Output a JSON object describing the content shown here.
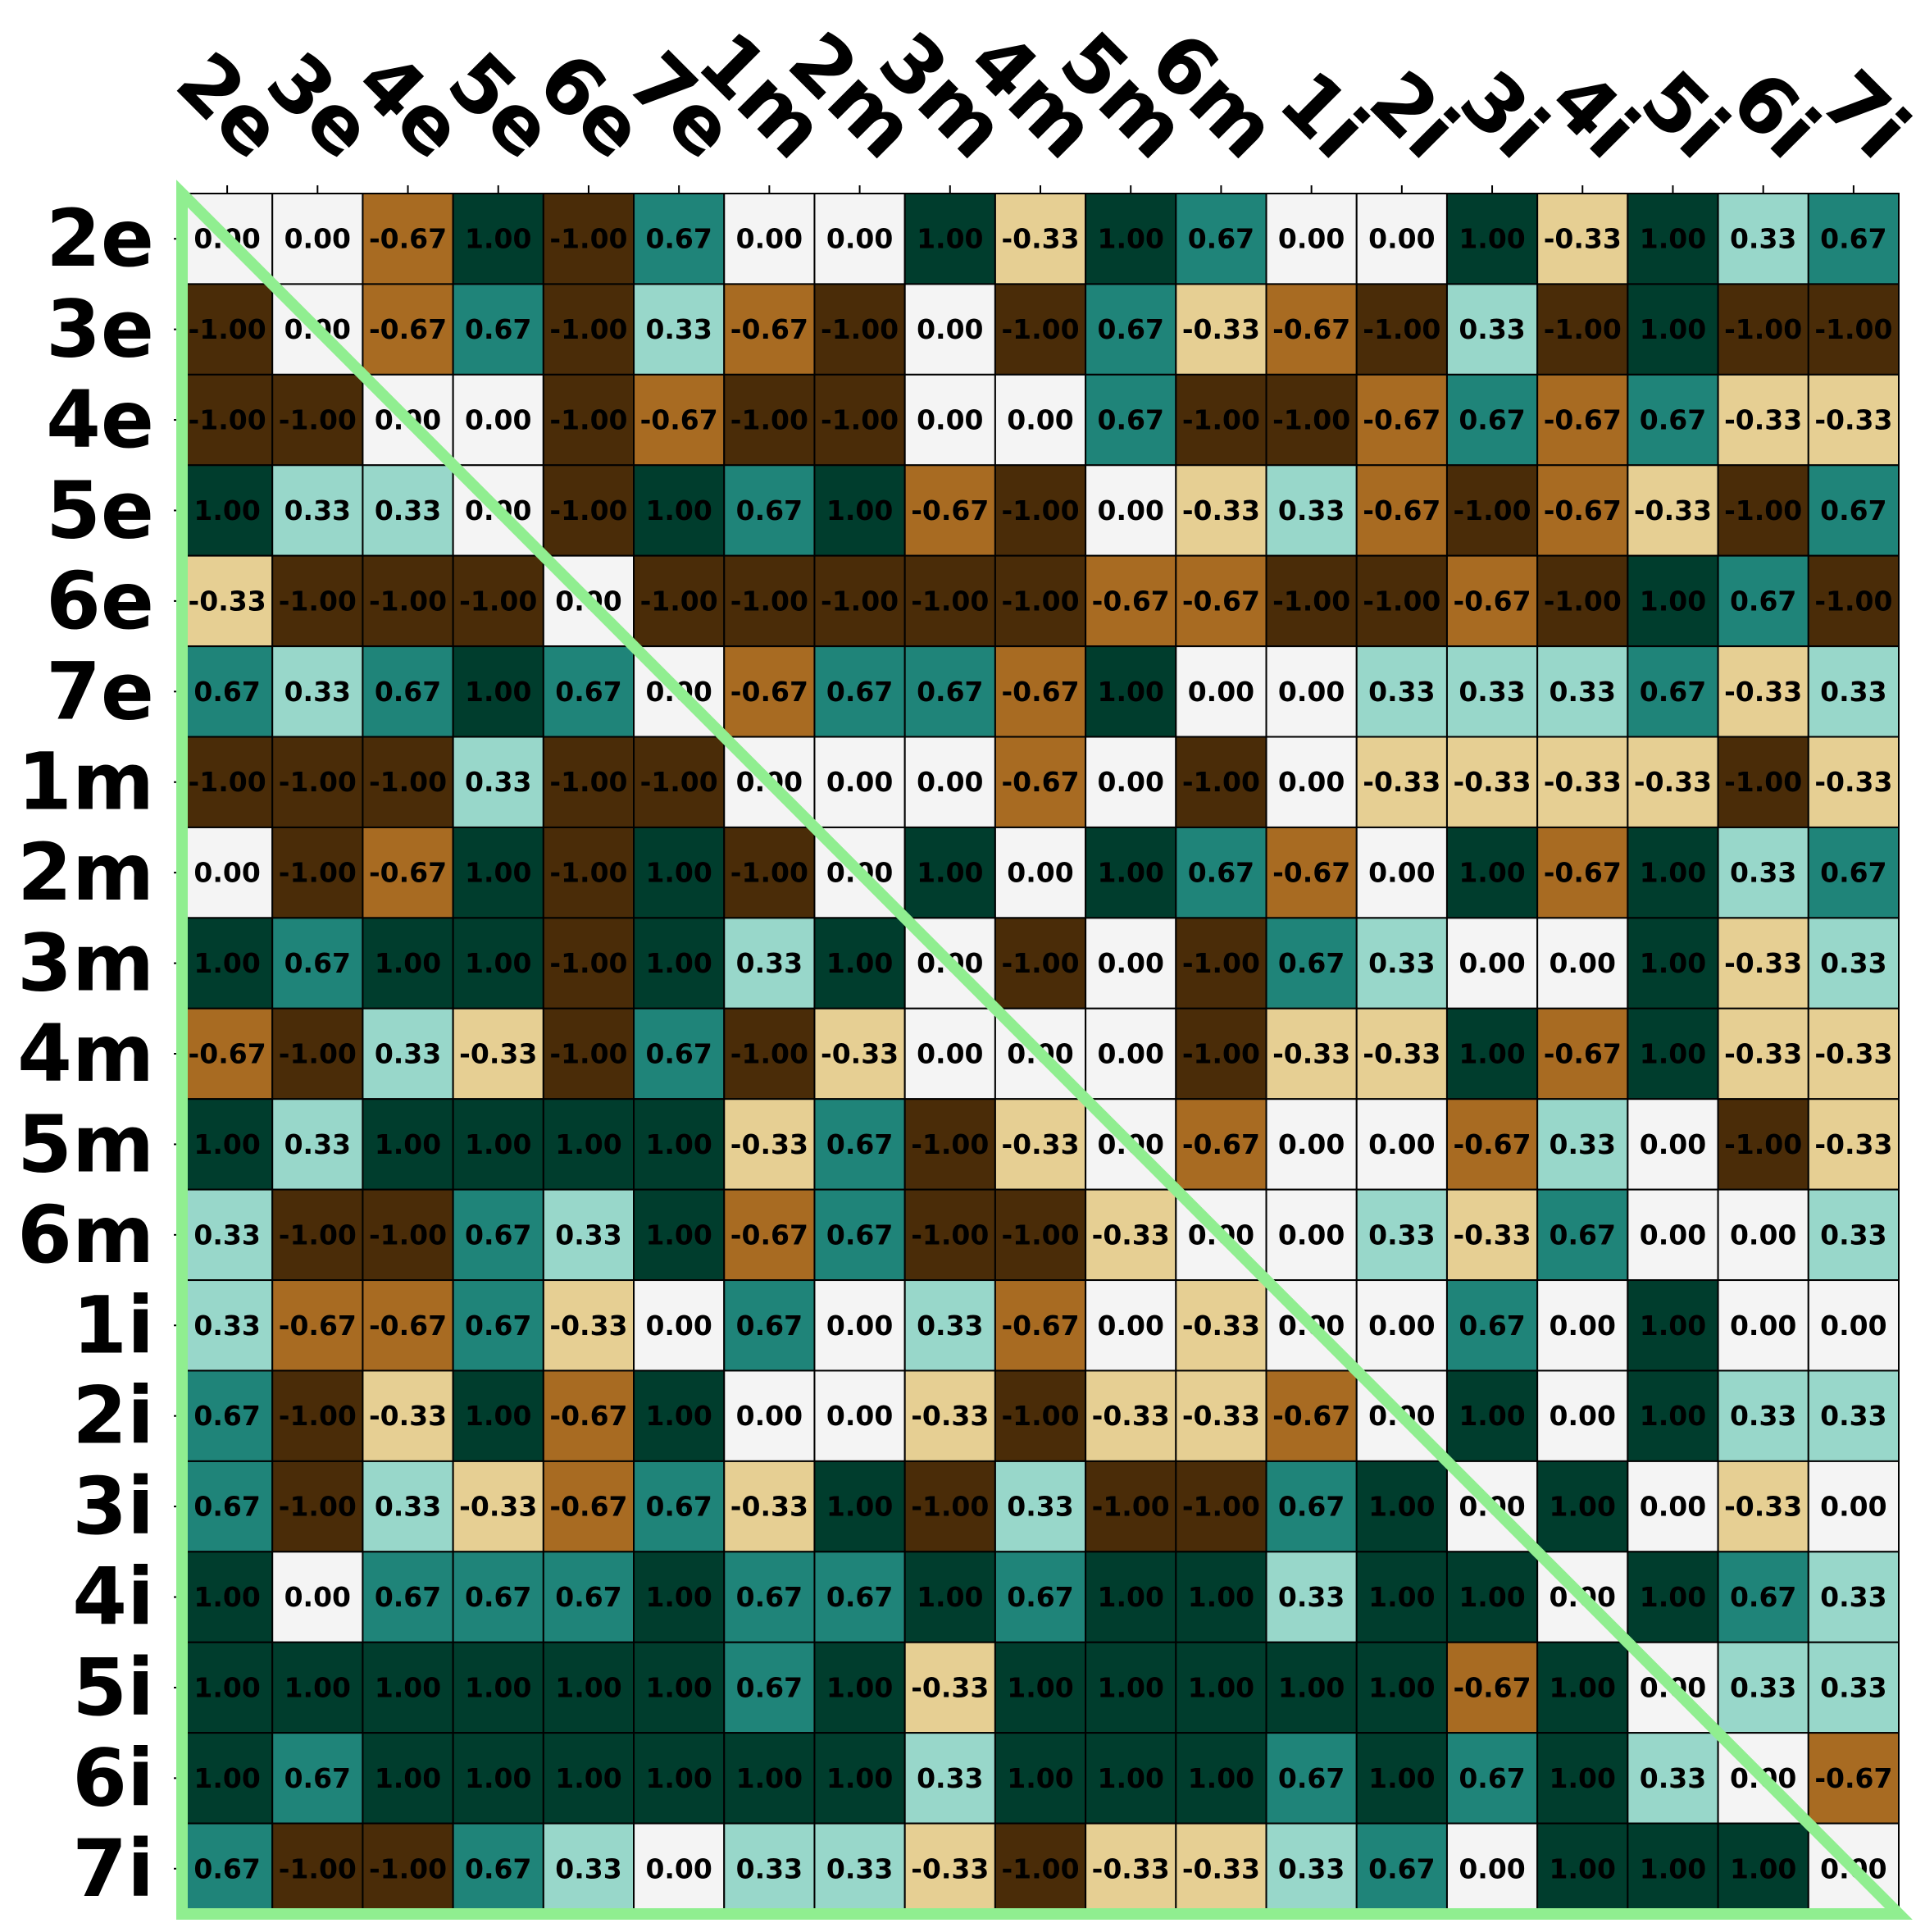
{
  "chart_data": {
    "type": "heatmap",
    "rows": [
      "2e",
      "3e",
      "4e",
      "5e",
      "6e",
      "7e",
      "1m",
      "2m",
      "3m",
      "4m",
      "5m",
      "6m",
      "1i",
      "2i",
      "3i",
      "4i",
      "5i",
      "6i",
      "7i"
    ],
    "columns": [
      "2e",
      "3e",
      "4e",
      "5e",
      "6e",
      "7e",
      "1m",
      "2m",
      "3m",
      "4m",
      "5m",
      "6m",
      "1i",
      "2i",
      "3i",
      "4i",
      "5i",
      "6i",
      "7i"
    ],
    "values": [
      [
        0.0,
        0.0,
        -0.67,
        1.0,
        -1.0,
        0.67,
        0.0,
        0.0,
        1.0,
        -0.33,
        1.0,
        0.67,
        0.0,
        0.0,
        1.0,
        -0.33,
        1.0,
        0.33,
        0.67
      ],
      [
        -1.0,
        0.0,
        -0.67,
        0.67,
        -1.0,
        0.33,
        -0.67,
        -1.0,
        0.0,
        -1.0,
        0.67,
        -0.33,
        -0.67,
        -1.0,
        0.33,
        -1.0,
        1.0,
        -1.0,
        -1.0
      ],
      [
        -1.0,
        -1.0,
        0.0,
        0.0,
        -1.0,
        -0.67,
        -1.0,
        -1.0,
        0.0,
        0.0,
        0.67,
        -1.0,
        -1.0,
        -0.67,
        0.67,
        -0.67,
        0.67,
        -0.33,
        -0.33
      ],
      [
        1.0,
        0.33,
        0.33,
        0.0,
        -1.0,
        1.0,
        0.67,
        1.0,
        -0.67,
        -1.0,
        0.0,
        -0.33,
        0.33,
        -0.67,
        -1.0,
        -0.67,
        -0.33,
        -1.0,
        0.67
      ],
      [
        -0.33,
        -1.0,
        -1.0,
        -1.0,
        0.0,
        -1.0,
        -1.0,
        -1.0,
        -1.0,
        -1.0,
        -0.67,
        -0.67,
        -1.0,
        -1.0,
        -0.67,
        -1.0,
        1.0,
        0.67,
        -1.0
      ],
      [
        0.67,
        0.33,
        0.67,
        1.0,
        0.67,
        0.0,
        -0.67,
        0.67,
        0.67,
        -0.67,
        1.0,
        0.0,
        0.0,
        0.33,
        0.33,
        0.33,
        0.67,
        -0.33,
        0.33
      ],
      [
        -1.0,
        -1.0,
        -1.0,
        0.33,
        -1.0,
        -1.0,
        0.0,
        0.0,
        0.0,
        -0.67,
        0.0,
        -1.0,
        0.0,
        -0.33,
        -0.33,
        -0.33,
        -0.33,
        -1.0,
        -0.33
      ],
      [
        0.0,
        -1.0,
        -0.67,
        1.0,
        -1.0,
        1.0,
        -1.0,
        0.0,
        1.0,
        0.0,
        1.0,
        0.67,
        -0.67,
        0.0,
        1.0,
        -0.67,
        1.0,
        0.33,
        0.67
      ],
      [
        1.0,
        0.67,
        1.0,
        1.0,
        -1.0,
        1.0,
        0.33,
        1.0,
        0.0,
        -1.0,
        0.0,
        -1.0,
        0.67,
        0.33,
        0.0,
        0.0,
        1.0,
        -0.33,
        0.33
      ],
      [
        -0.67,
        -1.0,
        0.33,
        -0.33,
        -1.0,
        0.67,
        -1.0,
        -0.33,
        0.0,
        0.0,
        0.0,
        -1.0,
        -0.33,
        -0.33,
        1.0,
        -0.67,
        1.0,
        -0.33,
        -0.33
      ],
      [
        1.0,
        0.33,
        1.0,
        1.0,
        1.0,
        1.0,
        -0.33,
        0.67,
        -1.0,
        -0.33,
        0.0,
        -0.67,
        0.0,
        0.0,
        -0.67,
        0.33,
        0.0,
        -1.0,
        -0.33
      ],
      [
        0.33,
        -1.0,
        -1.0,
        0.67,
        0.33,
        1.0,
        -0.67,
        0.67,
        -1.0,
        -1.0,
        -0.33,
        0.0,
        0.0,
        0.33,
        -0.33,
        0.67,
        0.0,
        0.0,
        0.33
      ],
      [
        0.33,
        -0.67,
        -0.67,
        0.67,
        -0.33,
        0.0,
        0.67,
        0.0,
        0.33,
        -0.67,
        0.0,
        -0.33,
        0.0,
        0.0,
        0.67,
        0.0,
        1.0,
        0.0,
        0.0
      ],
      [
        0.67,
        -1.0,
        -0.33,
        1.0,
        -0.67,
        1.0,
        0.0,
        0.0,
        -0.33,
        -1.0,
        -0.33,
        -0.33,
        -0.67,
        0.0,
        1.0,
        0.0,
        1.0,
        0.33,
        0.33
      ],
      [
        0.67,
        -1.0,
        0.33,
        -0.33,
        -0.67,
        0.67,
        -0.33,
        1.0,
        -1.0,
        0.33,
        -1.0,
        -1.0,
        0.67,
        1.0,
        0.0,
        1.0,
        0.0,
        -0.33,
        0.0
      ],
      [
        1.0,
        0.0,
        0.67,
        0.67,
        0.67,
        1.0,
        0.67,
        0.67,
        1.0,
        0.67,
        1.0,
        1.0,
        0.33,
        1.0,
        1.0,
        0.0,
        1.0,
        0.67,
        0.33
      ],
      [
        1.0,
        1.0,
        1.0,
        1.0,
        1.0,
        1.0,
        0.67,
        1.0,
        -0.33,
        1.0,
        1.0,
        1.0,
        1.0,
        1.0,
        -0.67,
        1.0,
        0.0,
        0.33,
        0.33
      ],
      [
        1.0,
        0.67,
        1.0,
        1.0,
        1.0,
        1.0,
        1.0,
        1.0,
        0.33,
        1.0,
        1.0,
        1.0,
        0.67,
        1.0,
        0.67,
        1.0,
        0.33,
        0.0,
        -0.67
      ],
      [
        0.67,
        -1.0,
        -1.0,
        0.67,
        0.33,
        0.0,
        0.33,
        0.33,
        -0.33,
        -1.0,
        -0.33,
        -0.33,
        0.33,
        0.67,
        0.0,
        1.0,
        1.0,
        1.0,
        0.0
      ]
    ],
    "value_range": [
      -1,
      1
    ],
    "colormap": {
      "name": "BrBG",
      "-1.00": "#4a2c08",
      "-0.67": "#a86b22",
      "-0.33": "#e6cf93",
      "0.00": "#f4f4f4",
      "0.33": "#98d7ca",
      "0.67": "#1f8479",
      "1.00": "#003d2d"
    },
    "text_color": "#000000",
    "annotation_format": "%.2f",
    "diagonal_line_color": "#90ee90",
    "title": "",
    "xlabel": "",
    "ylabel": "",
    "colorbar": false
  }
}
